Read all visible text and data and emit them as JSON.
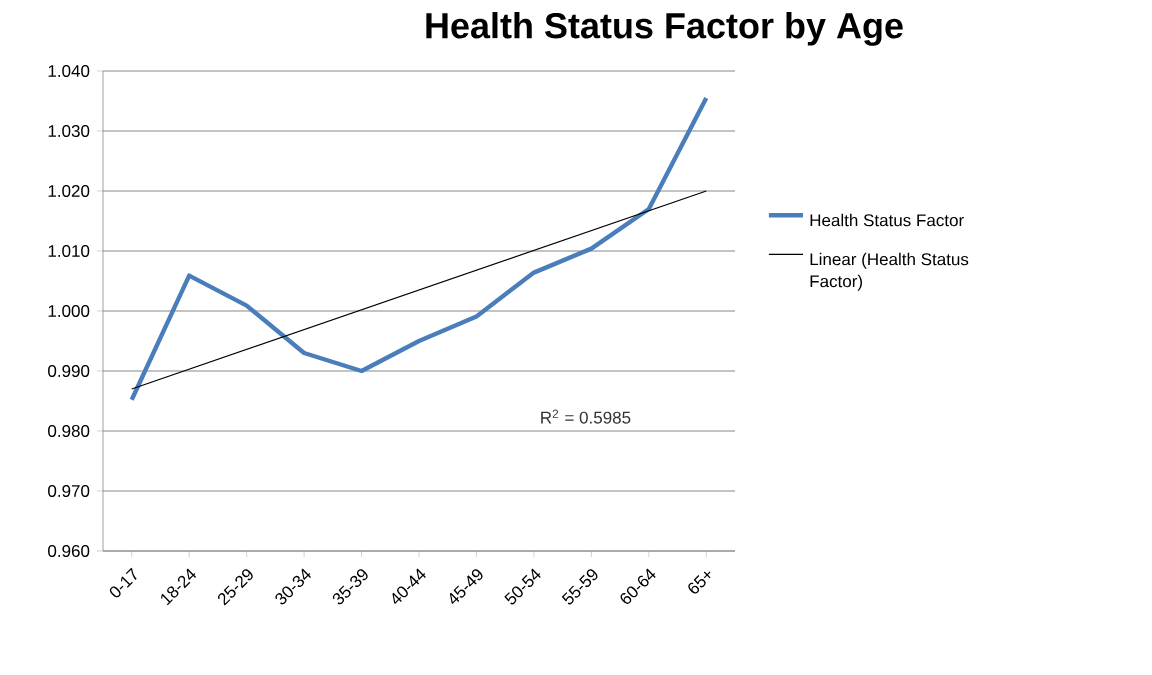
{
  "chart_data": {
    "type": "line",
    "title": "Health Status Factor by Age",
    "categories": [
      "0-17",
      "18-24",
      "25-29",
      "30-34",
      "35-39",
      "40-44",
      "45-49",
      "50-54",
      "55-59",
      "60-64",
      "65+"
    ],
    "series": [
      {
        "name": "Health Status Factor",
        "color": "#4a7ebb",
        "values": [
          0.9852,
          1.0059,
          1.0009,
          0.993,
          0.99,
          0.995,
          0.9991,
          1.0064,
          1.0104,
          1.017,
          1.0355
        ]
      },
      {
        "name": "Linear (Health Status Factor)",
        "color": "#000000",
        "values": [
          0.987,
          null,
          null,
          null,
          null,
          null,
          null,
          null,
          null,
          null,
          1.02
        ]
      }
    ],
    "ylim": [
      0.96,
      1.04
    ],
    "yticks": [
      {
        "value": 0.96,
        "label": "0.960"
      },
      {
        "value": 0.97,
        "label": "0.970"
      },
      {
        "value": 0.98,
        "label": "0.980"
      },
      {
        "value": 0.99,
        "label": "0.990"
      },
      {
        "value": 1.0,
        "label": "1.000"
      },
      {
        "value": 1.01,
        "label": "1.010"
      },
      {
        "value": 1.02,
        "label": "1.020"
      },
      {
        "value": 1.03,
        "label": "1.030"
      },
      {
        "value": 1.04,
        "label": "1.040"
      }
    ],
    "annotations": [
      "R$^{2}$ = 0.5985"
    ],
    "grid": "y",
    "legend": "right",
    "marker": "none",
    "line_style": "solid"
  }
}
